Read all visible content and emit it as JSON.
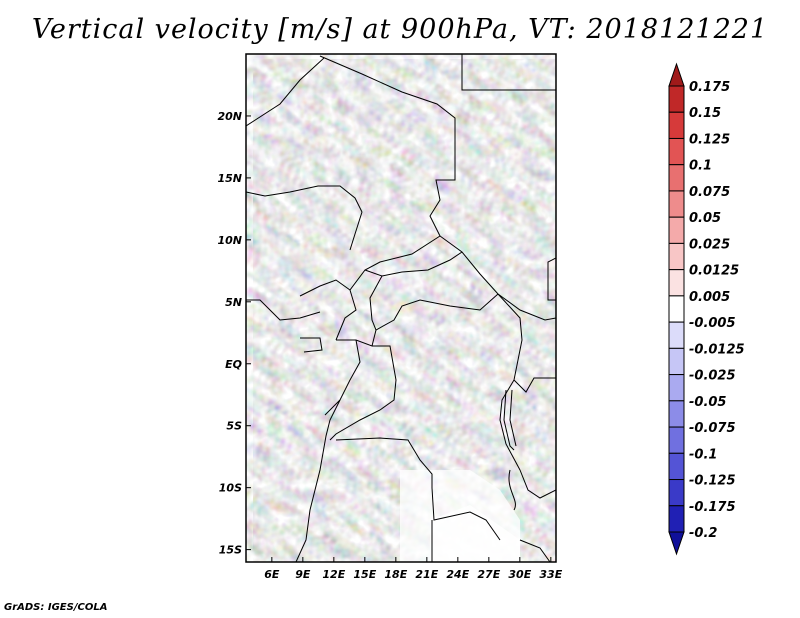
{
  "title": "Vertical velocity [m/s] at 900hPa, VT: 2018121221",
  "credit": "GrADS: IGES/COLA",
  "map": {
    "lon_ticks": [
      "6E",
      "9E",
      "12E",
      "15E",
      "18E",
      "21E",
      "24E",
      "27E",
      "30E",
      "33E"
    ],
    "lat_ticks": [
      "20N",
      "15N",
      "10N",
      "5N",
      "EQ",
      "5S",
      "10S",
      "15S"
    ],
    "lon_range": [
      3.5,
      33.5
    ],
    "lat_range": [
      -16,
      25
    ]
  },
  "colorbar": {
    "labels": [
      "0.175",
      "0.15",
      "0.125",
      "0.1",
      "0.075",
      "0.05",
      "0.025",
      "0.0125",
      "0.005",
      "-0.005",
      "-0.0125",
      "-0.025",
      "-0.05",
      "-0.075",
      "-0.1",
      "-0.125",
      "-0.175",
      "-0.2"
    ],
    "colors": [
      "#a01a1a",
      "#c02828",
      "#d63a3a",
      "#e25454",
      "#e87070",
      "#ee8c8c",
      "#f4aaaa",
      "#f8c6c6",
      "#fbe2e2",
      "#ffffff",
      "#dcdcfa",
      "#c6c6f6",
      "#aaaaf0",
      "#8c8ce8",
      "#7070e0",
      "#5454d6",
      "#3a3ac8",
      "#2020b4",
      "#10109a"
    ]
  }
}
